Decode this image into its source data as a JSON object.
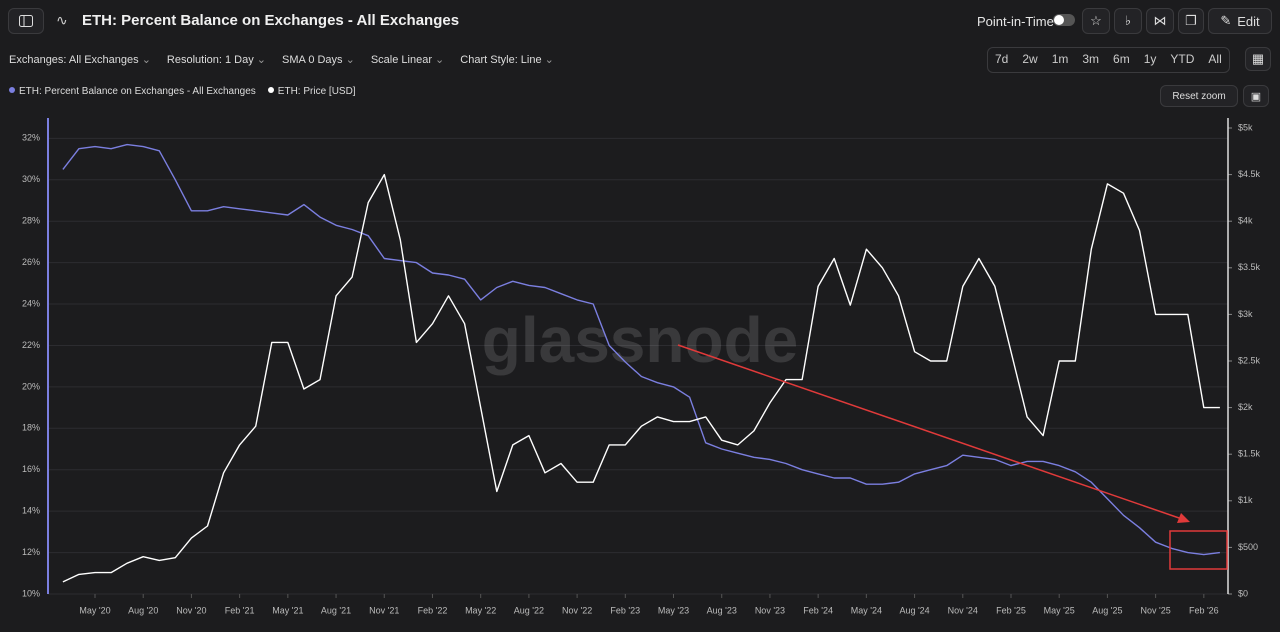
{
  "header": {
    "title": "ETH: Percent Balance on Exchanges - All Exchanges",
    "point_in_time": "Point-in-Time",
    "edit": "Edit"
  },
  "filters": [
    "Exchanges: All Exchanges",
    "Resolution: 1 Day",
    "SMA 0 Days",
    "Scale Linear",
    "Chart Style: Line"
  ],
  "ranges": [
    "7d",
    "2w",
    "1m",
    "3m",
    "6m",
    "1y",
    "YTD",
    "All"
  ],
  "reset_zoom": "Reset zoom",
  "chart_data": {
    "type": "line",
    "watermark": "glassnode",
    "x": [
      "2020-03",
      "2020-04",
      "2020-05",
      "2020-06",
      "2020-07",
      "2020-08",
      "2020-09",
      "2020-10",
      "2020-11",
      "2020-12",
      "2021-01",
      "2021-02",
      "2021-03",
      "2021-04",
      "2021-05",
      "2021-06",
      "2021-07",
      "2021-08",
      "2021-09",
      "2021-10",
      "2021-11",
      "2021-12",
      "2022-01",
      "2022-02",
      "2022-03",
      "2022-04",
      "2022-05",
      "2022-06",
      "2022-07",
      "2022-08",
      "2022-09",
      "2022-10",
      "2022-11",
      "2022-12",
      "2023-01",
      "2023-02",
      "2023-03",
      "2023-04",
      "2023-05",
      "2023-06",
      "2023-07",
      "2023-08",
      "2023-09",
      "2023-10",
      "2023-11",
      "2023-12",
      "2024-01",
      "2024-02",
      "2024-03",
      "2024-04",
      "2024-05",
      "2024-06",
      "2024-07",
      "2024-08",
      "2024-09",
      "2024-10",
      "2024-11",
      "2024-12",
      "2025-01",
      "2025-02",
      "2025-03",
      "2025-04",
      "2025-05",
      "2025-06",
      "2025-07",
      "2025-08",
      "2025-09",
      "2025-10",
      "2025-11",
      "2025-12",
      "2026-01",
      "2026-02",
      "2026-03"
    ],
    "series": [
      {
        "name": "ETH: Percent Balance on Exchanges - All Exchanges",
        "color": "#7b7fe0",
        "values": [
          30.5,
          31.5,
          31.6,
          31.5,
          31.7,
          31.6,
          31.4,
          30.0,
          28.5,
          28.5,
          28.7,
          28.6,
          28.5,
          28.4,
          28.3,
          28.8,
          28.2,
          27.8,
          27.6,
          27.3,
          26.2,
          26.1,
          26.0,
          25.5,
          25.4,
          25.2,
          24.2,
          24.8,
          25.1,
          24.9,
          24.8,
          24.5,
          24.2,
          24.0,
          22.0,
          21.2,
          20.5,
          20.2,
          20.0,
          19.5,
          17.3,
          17.0,
          16.8,
          16.6,
          16.5,
          16.3,
          16.0,
          15.8,
          15.6,
          15.6,
          15.3,
          15.3,
          15.4,
          15.8,
          16.0,
          16.2,
          16.7,
          16.6,
          16.5,
          16.2,
          16.4,
          16.4,
          16.2,
          15.9,
          15.4,
          14.6,
          13.8,
          13.2,
          12.5,
          12.2,
          12.0,
          11.9,
          12.0
        ]
      },
      {
        "name": "ETH: Price [USD]",
        "color": "#ffffff",
        "axis": "y2",
        "values": [
          130,
          210,
          230,
          230,
          330,
          400,
          360,
          390,
          600,
          730,
          1300,
          1600,
          1800,
          2700,
          2700,
          2200,
          2300,
          3200,
          3400,
          4200,
          4500,
          3800,
          2700,
          2900,
          3200,
          2900,
          2000,
          1100,
          1600,
          1700,
          1300,
          1400,
          1200,
          1200,
          1600,
          1600,
          1800,
          1900,
          1850,
          1850,
          1900,
          1650,
          1600,
          1750,
          2050,
          2300,
          2300,
          3300,
          3600,
          3100,
          3700,
          3500,
          3200,
          2600,
          2500,
          2500,
          3300,
          3600,
          3300,
          2600,
          1900,
          1700,
          2500,
          2500,
          3700,
          4400,
          4300,
          3900,
          3000,
          3000,
          3000,
          2000,
          2000
        ]
      }
    ],
    "xticks": [
      {
        "value": "2020-05",
        "label": "May '20"
      },
      {
        "value": "2020-08",
        "label": "Aug '20"
      },
      {
        "value": "2020-11",
        "label": "Nov '20"
      },
      {
        "value": "2021-02",
        "label": "Feb '21"
      },
      {
        "value": "2021-05",
        "label": "May '21"
      },
      {
        "value": "2021-08",
        "label": "Aug '21"
      },
      {
        "value": "2021-11",
        "label": "Nov '21"
      },
      {
        "value": "2022-02",
        "label": "Feb '22"
      },
      {
        "value": "2022-05",
        "label": "May '22"
      },
      {
        "value": "2022-08",
        "label": "Aug '22"
      },
      {
        "value": "2022-11",
        "label": "Nov '22"
      },
      {
        "value": "2023-02",
        "label": "Feb '23"
      },
      {
        "value": "2023-05",
        "label": "May '23"
      },
      {
        "value": "2023-08",
        "label": "Aug '23"
      },
      {
        "value": "2023-11",
        "label": "Nov '23"
      },
      {
        "value": "2024-02",
        "label": "Feb '24"
      },
      {
        "value": "2024-05",
        "label": "May '24"
      },
      {
        "value": "2024-08",
        "label": "Aug '24"
      },
      {
        "value": "2024-11",
        "label": "Nov '24"
      },
      {
        "value": "2025-02",
        "label": "Feb '25"
      },
      {
        "value": "2025-05",
        "label": "May '25"
      },
      {
        "value": "2025-08",
        "label": "Aug '25"
      },
      {
        "value": "2025-11",
        "label": "Nov '25"
      },
      {
        "value": "2026-02",
        "label": "Feb '26"
      }
    ],
    "ylim": [
      10,
      32.5
    ],
    "yticks": [
      {
        "value": 10,
        "label": "10%"
      },
      {
        "value": 12,
        "label": "12%"
      },
      {
        "value": 14,
        "label": "14%"
      },
      {
        "value": 16,
        "label": "16%"
      },
      {
        "value": 18,
        "label": "18%"
      },
      {
        "value": 20,
        "label": "20%"
      },
      {
        "value": 22,
        "label": "22%"
      },
      {
        "value": 24,
        "label": "24%"
      },
      {
        "value": 26,
        "label": "26%"
      },
      {
        "value": 28,
        "label": "28%"
      },
      {
        "value": 30,
        "label": "30%"
      },
      {
        "value": 32,
        "label": "32%"
      }
    ],
    "y2lim": [
      0,
      5000
    ],
    "y2ticks": [
      {
        "value": 0,
        "label": "$0"
      },
      {
        "value": 500,
        "label": "$500"
      },
      {
        "value": 1000,
        "label": "$1k"
      },
      {
        "value": 1500,
        "label": "$1.5k"
      },
      {
        "value": 2000,
        "label": "$2k"
      },
      {
        "value": 2500,
        "label": "$2.5k"
      },
      {
        "value": 3000,
        "label": "$3k"
      },
      {
        "value": 3500,
        "label": "$3.5k"
      },
      {
        "value": 4000,
        "label": "$4k"
      },
      {
        "value": 4500,
        "label": "$4.5k"
      },
      {
        "value": 5000,
        "label": "$5k"
      }
    ],
    "grid": true
  }
}
